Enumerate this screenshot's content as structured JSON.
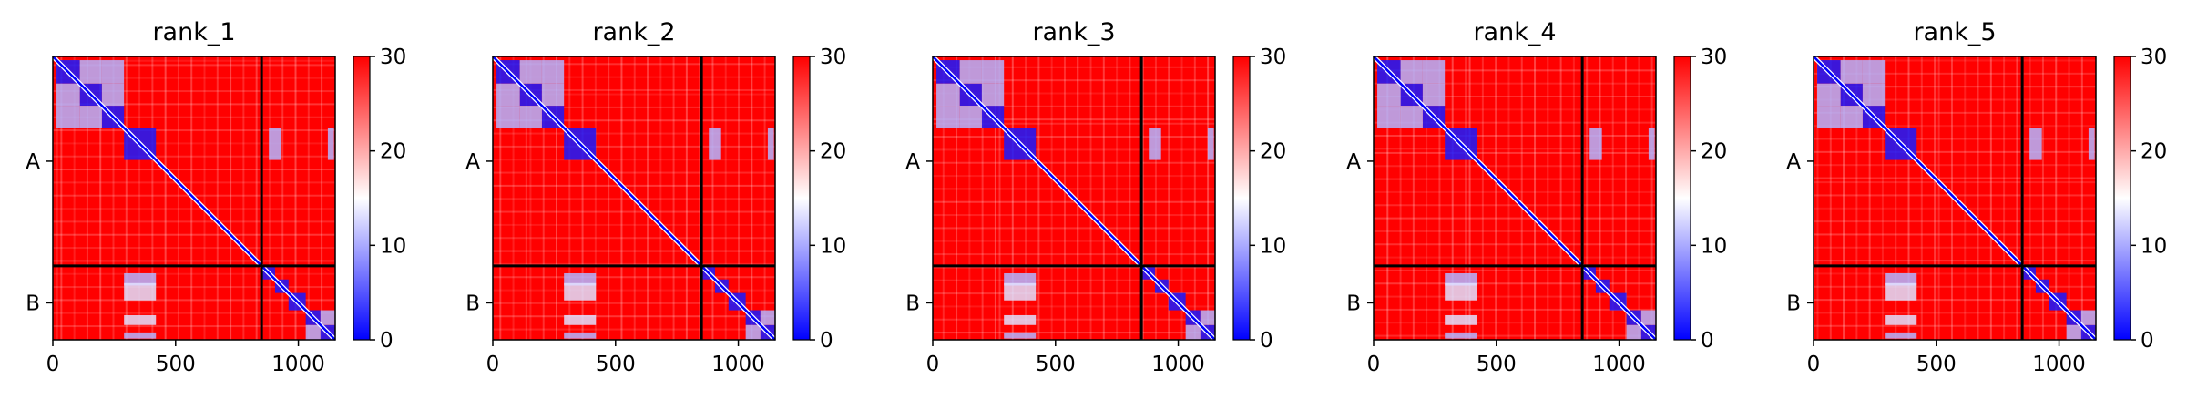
{
  "chart_data": [
    {
      "type": "heatmap",
      "title": "rank_1",
      "xlabel": "",
      "ylabel": "",
      "x_ticks": [
        0,
        500,
        1000
      ],
      "y_ticks": [
        "A",
        "B"
      ],
      "colorbar": {
        "min": 0,
        "max": 30,
        "ticks": [
          0,
          10,
          20,
          30
        ],
        "colormap": "bwr"
      },
      "chain_lengths": [
        850,
        300
      ],
      "total_length": 1150
    },
    {
      "type": "heatmap",
      "title": "rank_2",
      "xlabel": "",
      "ylabel": "",
      "x_ticks": [
        0,
        500,
        1000
      ],
      "y_ticks": [
        "A",
        "B"
      ],
      "colorbar": {
        "min": 0,
        "max": 30,
        "ticks": [
          0,
          10,
          20,
          30
        ],
        "colormap": "bwr"
      },
      "chain_lengths": [
        850,
        300
      ],
      "total_length": 1150
    },
    {
      "type": "heatmap",
      "title": "rank_3",
      "xlabel": "",
      "ylabel": "",
      "x_ticks": [
        0,
        500,
        1000
      ],
      "y_ticks": [
        "A",
        "B"
      ],
      "colorbar": {
        "min": 0,
        "max": 30,
        "ticks": [
          0,
          10,
          20,
          30
        ],
        "colormap": "bwr"
      },
      "chain_lengths": [
        850,
        300
      ],
      "total_length": 1150
    },
    {
      "type": "heatmap",
      "title": "rank_4",
      "xlabel": "",
      "ylabel": "",
      "x_ticks": [
        0,
        500,
        1000
      ],
      "y_ticks": [
        "A",
        "B"
      ],
      "colorbar": {
        "min": 0,
        "max": 30,
        "ticks": [
          0,
          10,
          20,
          30
        ],
        "colormap": "bwr"
      },
      "chain_lengths": [
        850,
        300
      ],
      "total_length": 1150
    },
    {
      "type": "heatmap",
      "title": "rank_5",
      "xlabel": "",
      "ylabel": "",
      "x_ticks": [
        0,
        500,
        1000
      ],
      "y_ticks": [
        "A",
        "B"
      ],
      "colorbar": {
        "min": 0,
        "max": 30,
        "ticks": [
          0,
          10,
          20,
          30
        ],
        "colormap": "bwr"
      },
      "chain_lengths": [
        850,
        300
      ],
      "total_length": 1150
    }
  ],
  "colors": {
    "high": "#ff0000",
    "mid": "#ffffff",
    "low": "#0000ff"
  }
}
